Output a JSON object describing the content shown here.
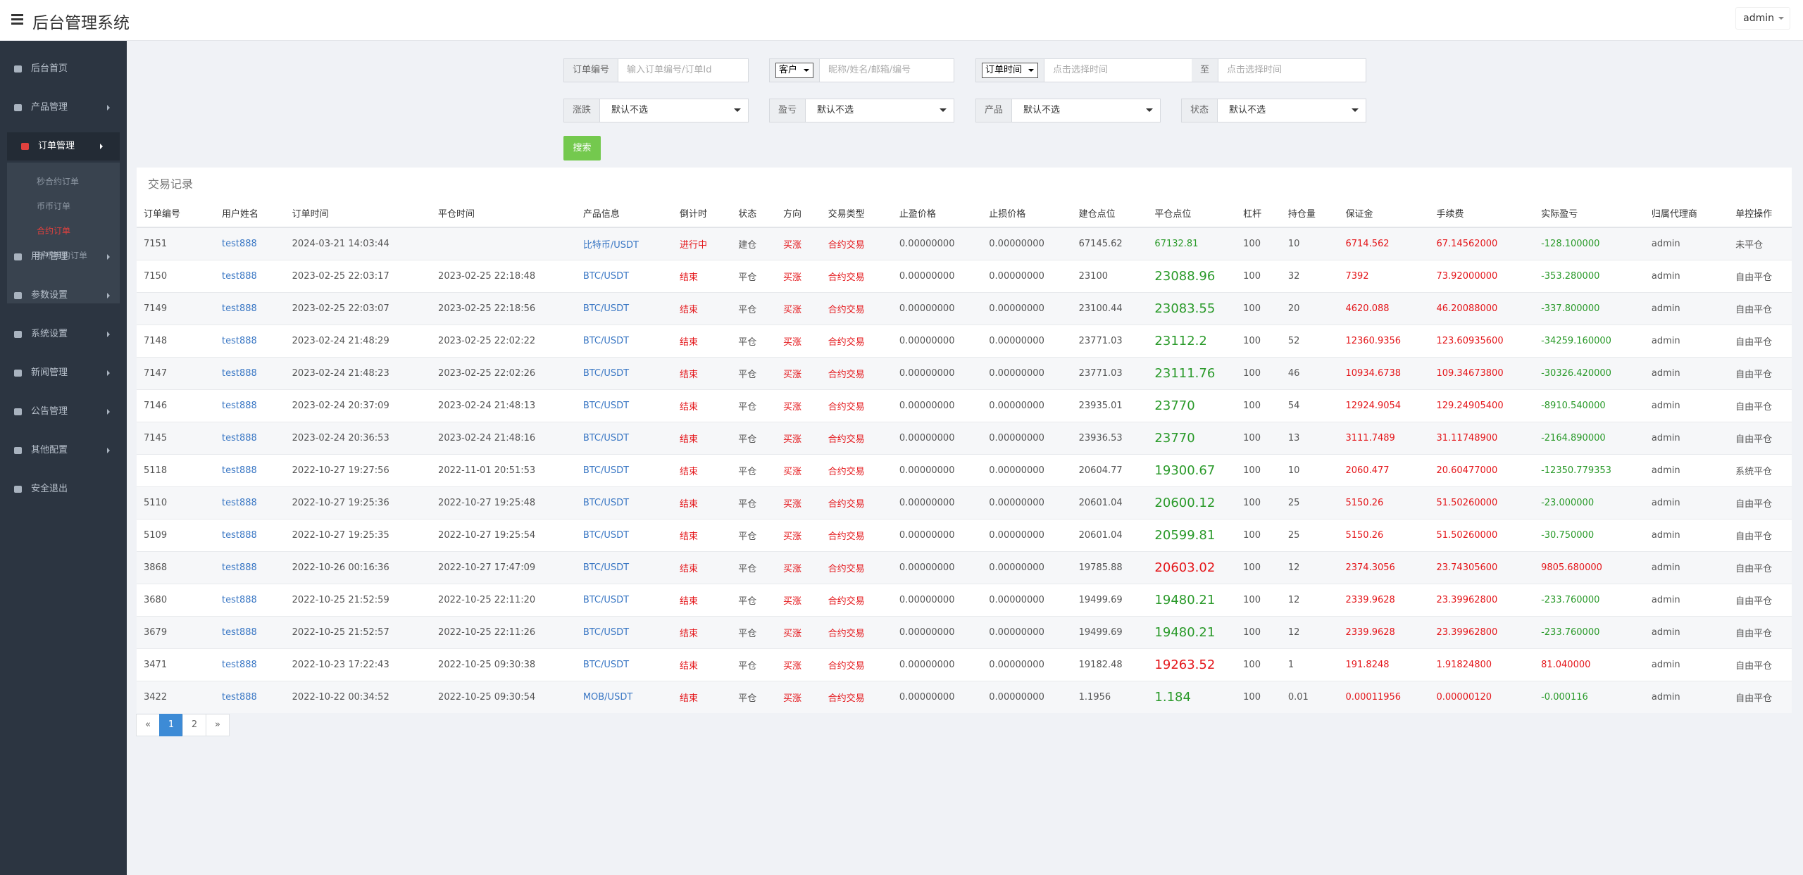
{
  "header": {
    "title": "后台管理系统",
    "user": "admin"
  },
  "sidebar": {
    "items": [
      "后台首页",
      "产品管理",
      "订单管理",
      "用户管理",
      "参数设置",
      "系统设置",
      "新闻管理",
      "公告管理",
      "其他配置",
      "安全退出"
    ],
    "submenu": [
      "秒合约订单",
      "币币订单",
      "合约订单",
      "新币申购订单"
    ]
  },
  "filters": {
    "row1": [
      [
        {
          "addon": "订单编号"
        },
        {
          "placeholder": "输入订单编号/订单Id"
        }
      ],
      [
        {
          "select": "客户"
        },
        {
          "placeholder": "昵称/姓名/邮箱/编号"
        }
      ],
      [
        {
          "select": "订单时间"
        },
        {
          "placeholder": "点击选择时间"
        },
        {
          "addon": "至"
        },
        {
          "placeholder": "点击选择时间"
        }
      ]
    ],
    "row2": [
      [
        {
          "addon": "涨跌"
        },
        {
          "option": "默认不选"
        }
      ],
      [
        {
          "addon": "盈亏"
        },
        {
          "option": "默认不选"
        }
      ],
      [
        {
          "addon": "产品"
        },
        {
          "option": "默认不选"
        }
      ],
      [
        {
          "addon": "状态"
        },
        {
          "option": "默认不选"
        }
      ]
    ],
    "search": "搜索"
  },
  "table": {
    "title": "交易记录",
    "columns": [
      "订单编号",
      "用户姓名",
      "订单时间",
      "平仓时间",
      "产品信息",
      "倒计时",
      "状态",
      "方向",
      "交易类型",
      "止盈价格",
      "止损价格",
      "建仓点位",
      "平仓点位",
      "杠杆",
      "持仓量",
      "保证金",
      "手续费",
      "实际盈亏",
      "归属代理商",
      "单控操作"
    ],
    "rows": [
      [
        "7151",
        "test888",
        "2024-03-21 14:03:44",
        "",
        "比特币/USDT",
        "进行中",
        "建仓",
        "买涨",
        "合约交易",
        "0.00000000",
        "0.00000000",
        "67145.62",
        "67132.81",
        "100",
        "10",
        "6714.562",
        "67.14562000",
        "-128.100000",
        "admin",
        "未平仓"
      ],
      [
        "7150",
        "test888",
        "2023-02-25 22:03:17",
        "2023-02-25 22:18:48",
        "BTC/USDT",
        "结束",
        "平仓",
        "买涨",
        "合约交易",
        "0.00000000",
        "0.00000000",
        "23100",
        "23088.96",
        "100",
        "32",
        "7392",
        "73.92000000",
        "-353.280000",
        "admin",
        "自由平仓"
      ],
      [
        "7149",
        "test888",
        "2023-02-25 22:03:07",
        "2023-02-25 22:18:56",
        "BTC/USDT",
        "结束",
        "平仓",
        "买涨",
        "合约交易",
        "0.00000000",
        "0.00000000",
        "23100.44",
        "23083.55",
        "100",
        "20",
        "4620.088",
        "46.20088000",
        "-337.800000",
        "admin",
        "自由平仓"
      ],
      [
        "7148",
        "test888",
        "2023-02-24 21:48:29",
        "2023-02-25 22:02:22",
        "BTC/USDT",
        "结束",
        "平仓",
        "买涨",
        "合约交易",
        "0.00000000",
        "0.00000000",
        "23771.03",
        "23112.2",
        "100",
        "52",
        "12360.9356",
        "123.60935600",
        "-34259.160000",
        "admin",
        "自由平仓"
      ],
      [
        "7147",
        "test888",
        "2023-02-24 21:48:23",
        "2023-02-25 22:02:26",
        "BTC/USDT",
        "结束",
        "平仓",
        "买涨",
        "合约交易",
        "0.00000000",
        "0.00000000",
        "23771.03",
        "23111.76",
        "100",
        "46",
        "10934.6738",
        "109.34673800",
        "-30326.420000",
        "admin",
        "自由平仓"
      ],
      [
        "7146",
        "test888",
        "2023-02-24 20:37:09",
        "2023-02-24 21:48:13",
        "BTC/USDT",
        "结束",
        "平仓",
        "买涨",
        "合约交易",
        "0.00000000",
        "0.00000000",
        "23935.01",
        "23770",
        "100",
        "54",
        "12924.9054",
        "129.24905400",
        "-8910.540000",
        "admin",
        "自由平仓"
      ],
      [
        "7145",
        "test888",
        "2023-02-24 20:36:53",
        "2023-02-24 21:48:16",
        "BTC/USDT",
        "结束",
        "平仓",
        "买涨",
        "合约交易",
        "0.00000000",
        "0.00000000",
        "23936.53",
        "23770",
        "100",
        "13",
        "3111.7489",
        "31.11748900",
        "-2164.890000",
        "admin",
        "自由平仓"
      ],
      [
        "5118",
        "test888",
        "2022-10-27 19:27:56",
        "2022-11-01 20:51:53",
        "BTC/USDT",
        "结束",
        "平仓",
        "买涨",
        "合约交易",
        "0.00000000",
        "0.00000000",
        "20604.77",
        "19300.67",
        "100",
        "10",
        "2060.477",
        "20.60477000",
        "-12350.779353",
        "admin",
        "系统平仓"
      ],
      [
        "5110",
        "test888",
        "2022-10-27 19:25:36",
        "2022-10-27 19:25:48",
        "BTC/USDT",
        "结束",
        "平仓",
        "买涨",
        "合约交易",
        "0.00000000",
        "0.00000000",
        "20601.04",
        "20600.12",
        "100",
        "25",
        "5150.26",
        "51.50260000",
        "-23.000000",
        "admin",
        "自由平仓"
      ],
      [
        "5109",
        "test888",
        "2022-10-27 19:25:35",
        "2022-10-27 19:25:54",
        "BTC/USDT",
        "结束",
        "平仓",
        "买涨",
        "合约交易",
        "0.00000000",
        "0.00000000",
        "20601.04",
        "20599.81",
        "100",
        "25",
        "5150.26",
        "51.50260000",
        "-30.750000",
        "admin",
        "自由平仓"
      ],
      [
        "3868",
        "test888",
        "2022-10-26 00:16:36",
        "2022-10-27 17:47:09",
        "BTC/USDT",
        "结束",
        "平仓",
        "买涨",
        "合约交易",
        "0.00000000",
        "0.00000000",
        "19785.88",
        "20603.02",
        "100",
        "12",
        "2374.3056",
        "23.74305600",
        "9805.680000",
        "admin",
        "自由平仓"
      ],
      [
        "3680",
        "test888",
        "2022-10-25 21:52:59",
        "2022-10-25 22:11:20",
        "BTC/USDT",
        "结束",
        "平仓",
        "买涨",
        "合约交易",
        "0.00000000",
        "0.00000000",
        "19499.69",
        "19480.21",
        "100",
        "12",
        "2339.9628",
        "23.39962800",
        "-233.760000",
        "admin",
        "自由平仓"
      ],
      [
        "3679",
        "test888",
        "2022-10-25 21:52:57",
        "2022-10-25 22:11:26",
        "BTC/USDT",
        "结束",
        "平仓",
        "买涨",
        "合约交易",
        "0.00000000",
        "0.00000000",
        "19499.69",
        "19480.21",
        "100",
        "12",
        "2339.9628",
        "23.39962800",
        "-233.760000",
        "admin",
        "自由平仓"
      ],
      [
        "3471",
        "test888",
        "2022-10-23 17:22:43",
        "2022-10-25 09:30:38",
        "BTC/USDT",
        "结束",
        "平仓",
        "买涨",
        "合约交易",
        "0.00000000",
        "0.00000000",
        "19182.48",
        "19263.52",
        "100",
        "1",
        "191.8248",
        "1.91824800",
        "81.040000",
        "admin",
        "自由平仓"
      ],
      [
        "3422",
        "test888",
        "2022-10-22 00:34:52",
        "2022-10-25 09:30:54",
        "MOB/USDT",
        "结束",
        "平仓",
        "买涨",
        "合约交易",
        "0.00000000",
        "0.00000000",
        "1.1956",
        "1.184",
        "100",
        "0.01",
        "0.00011956",
        "0.00000120",
        "-0.000116",
        "admin",
        "自由平仓"
      ]
    ]
  },
  "pagination": [
    "«",
    "1",
    "2",
    "»"
  ]
}
